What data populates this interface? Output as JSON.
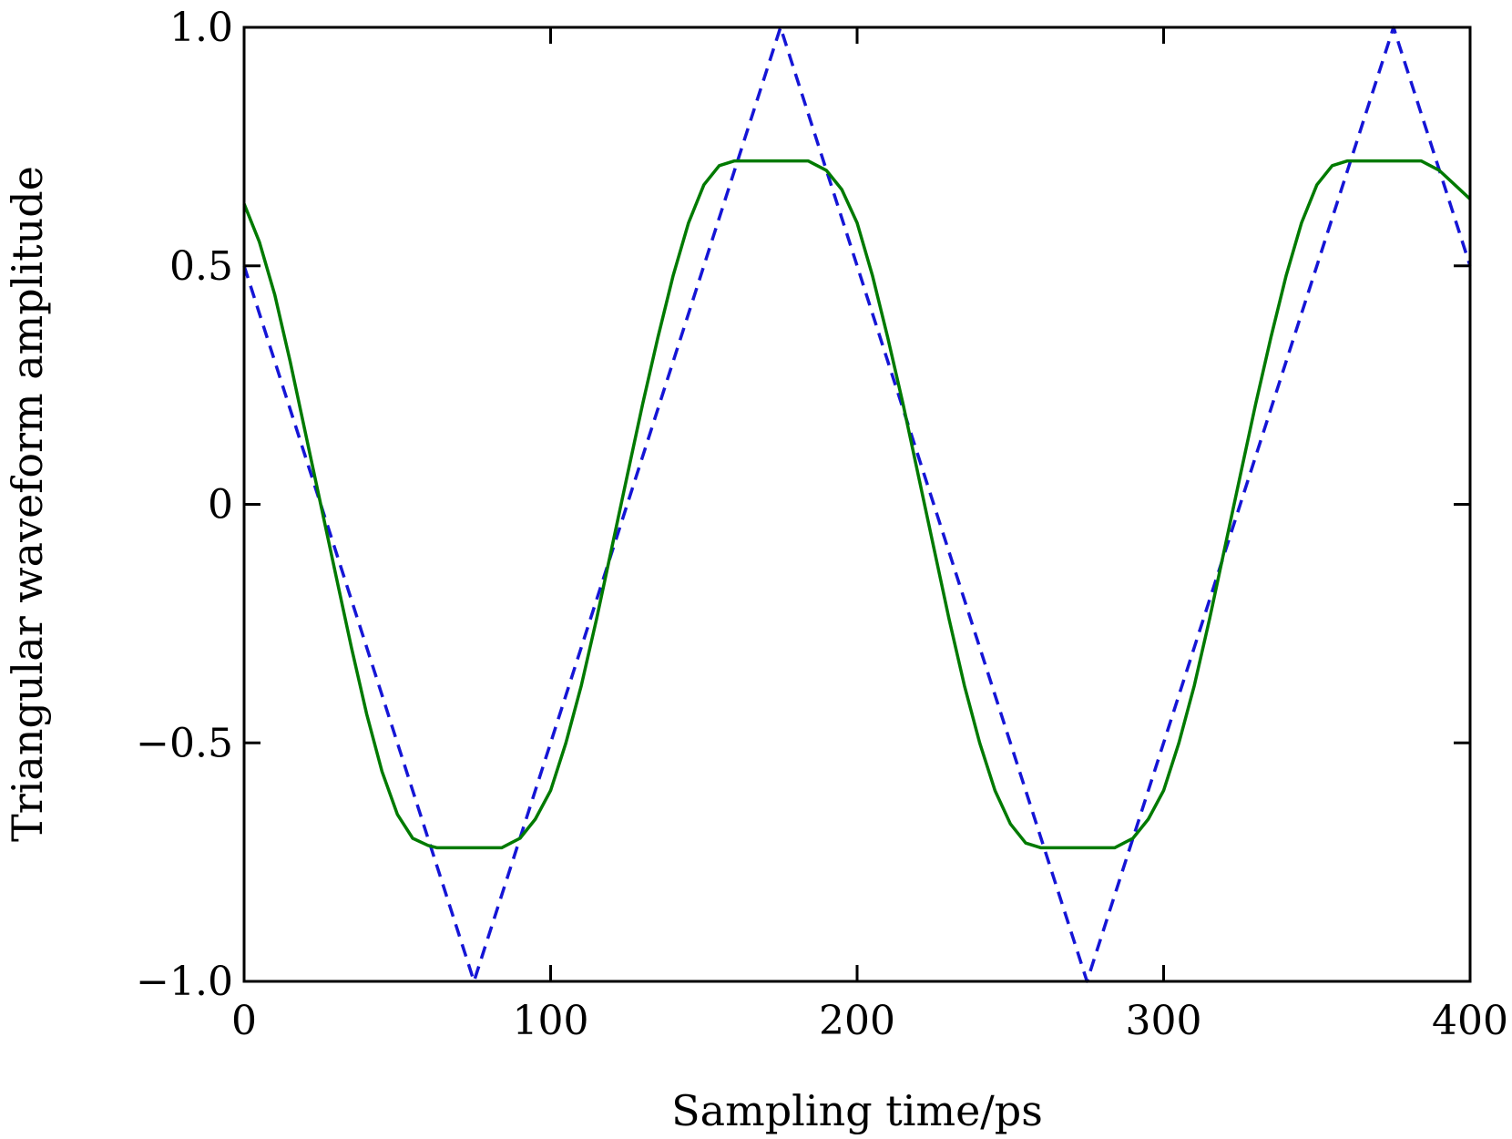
{
  "chart_data": {
    "type": "line",
    "title": "",
    "xlabel": "Sampling time/ps",
    "ylabel": "Triangular waveform amplitude",
    "xlim": [
      0,
      400
    ],
    "ylim": [
      -1.0,
      1.0
    ],
    "xticks": [
      0,
      100,
      200,
      300,
      400
    ],
    "xtick_labels": [
      "0",
      "100",
      "200",
      "300",
      "400"
    ],
    "yticks": [
      -1.0,
      -0.5,
      0,
      0.5,
      1.0
    ],
    "ytick_labels": [
      "−1.0",
      "−0.5",
      "0",
      "0.5",
      "1.0"
    ],
    "grid": false,
    "legend": "none",
    "series": [
      {
        "style": "dashed",
        "color": "#1515d6",
        "x": [
          0,
          75,
          175,
          275,
          375,
          400
        ],
        "y": [
          0.5,
          -1.0,
          1.0,
          -1.0,
          1.0,
          0.5
        ]
      },
      {
        "style": "solid",
        "color": "#007a00",
        "x": [
          0,
          5,
          10,
          15,
          20,
          25,
          30,
          35,
          40,
          45,
          50,
          55,
          60,
          63,
          65,
          70,
          75,
          80,
          84,
          87,
          90,
          95,
          100,
          105,
          110,
          115,
          120,
          125,
          130,
          135,
          140,
          145,
          150,
          155,
          160,
          163,
          165,
          170,
          175,
          180,
          184,
          187,
          190,
          195,
          200,
          205,
          210,
          215,
          220,
          225,
          230,
          235,
          240,
          245,
          250,
          255,
          260,
          263,
          265,
          270,
          275,
          280,
          284,
          287,
          290,
          295,
          300,
          305,
          310,
          315,
          320,
          325,
          330,
          335,
          340,
          345,
          350,
          355,
          360,
          363,
          365,
          370,
          375,
          380,
          384,
          387,
          390,
          395,
          400
        ],
        "y": [
          0.63,
          0.55,
          0.44,
          0.3,
          0.15,
          0.0,
          -0.15,
          -0.3,
          -0.44,
          -0.56,
          -0.65,
          -0.7,
          -0.715,
          -0.72,
          -0.72,
          -0.72,
          -0.72,
          -0.72,
          -0.72,
          -0.71,
          -0.7,
          -0.66,
          -0.6,
          -0.5,
          -0.38,
          -0.24,
          -0.09,
          0.06,
          0.21,
          0.35,
          0.48,
          0.59,
          0.67,
          0.71,
          0.72,
          0.72,
          0.72,
          0.72,
          0.72,
          0.72,
          0.72,
          0.71,
          0.7,
          0.66,
          0.59,
          0.48,
          0.35,
          0.21,
          0.06,
          -0.09,
          -0.24,
          -0.38,
          -0.5,
          -0.6,
          -0.67,
          -0.71,
          -0.72,
          -0.72,
          -0.72,
          -0.72,
          -0.72,
          -0.72,
          -0.72,
          -0.71,
          -0.7,
          -0.66,
          -0.6,
          -0.5,
          -0.38,
          -0.24,
          -0.09,
          0.06,
          0.21,
          0.35,
          0.48,
          0.59,
          0.67,
          0.71,
          0.72,
          0.72,
          0.72,
          0.72,
          0.72,
          0.72,
          0.72,
          0.71,
          0.7,
          0.67,
          0.64
        ]
      }
    ]
  }
}
